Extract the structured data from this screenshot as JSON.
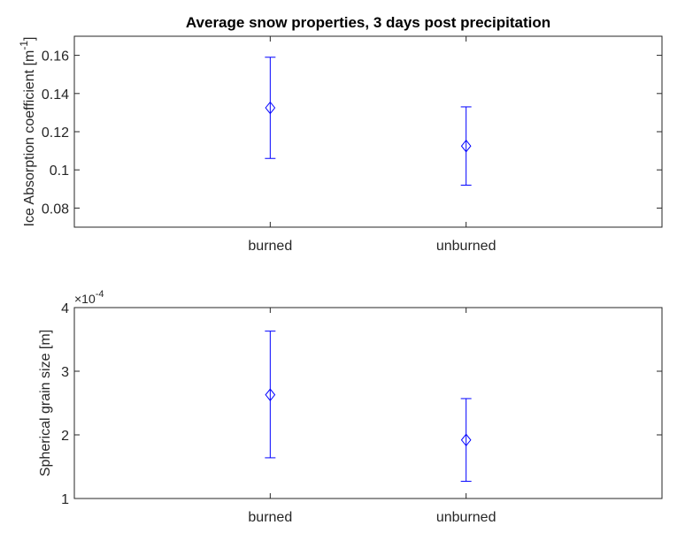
{
  "chart_data": [
    {
      "type": "errorbar",
      "title": "Average snow properties, 3 days post precipitation",
      "ylabel": "Ice Absorption coefficient [m",
      "ylabel_sup": "-1",
      "ylabel_close": "]",
      "categories": [
        "burned",
        "unburned"
      ],
      "x": [
        1,
        2
      ],
      "xlim": [
        0,
        3
      ],
      "ylim": [
        0.07,
        0.17
      ],
      "yticks": [
        0.08,
        0.1,
        0.12,
        0.14,
        0.16
      ],
      "ytick_labels": [
        "0.08",
        "0.1",
        "0.12",
        "0.14",
        "0.16"
      ],
      "values": [
        0.1325,
        0.1125
      ],
      "lower": [
        0.106,
        0.092
      ],
      "upper": [
        0.159,
        0.133
      ],
      "marker": "diamond",
      "color": "#0000ff"
    },
    {
      "type": "errorbar",
      "ylabel": "Spherical grain size [m]",
      "exponent_label": "×10",
      "exponent_sup": "-4",
      "categories": [
        "burned",
        "unburned"
      ],
      "x": [
        1,
        2
      ],
      "xlim": [
        0,
        3
      ],
      "ylim": [
        1,
        4
      ],
      "yticks": [
        1,
        2,
        3,
        4
      ],
      "ytick_labels": [
        "1",
        "2",
        "3",
        "4"
      ],
      "values": [
        2.63,
        1.92
      ],
      "lower": [
        1.64,
        1.27
      ],
      "upper": [
        3.63,
        2.57
      ],
      "marker": "diamond",
      "color": "#0000ff"
    }
  ]
}
